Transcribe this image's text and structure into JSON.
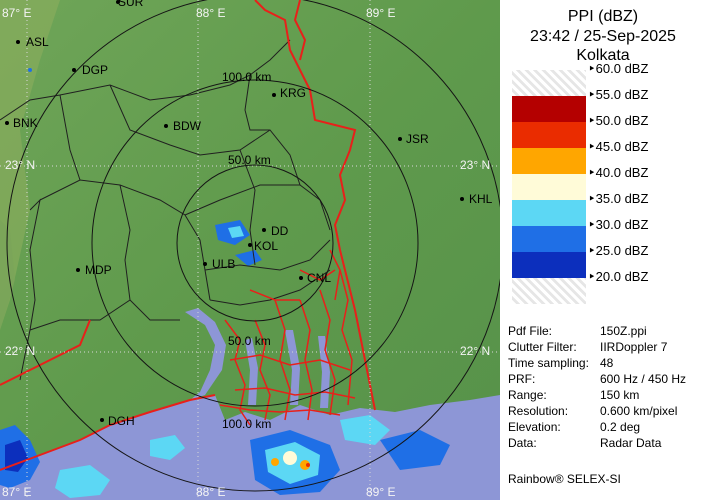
{
  "map": {
    "coord_labels": {
      "lon_87_top": "87° E",
      "lon_88_top": "88° E",
      "lon_89_top": "89° E",
      "lat_23_left": "23° N",
      "lat_23_right": "23° N",
      "lat_22_left": "22° N",
      "lat_22_right": "22° N",
      "lon_87_bottom": "87° E",
      "lon_88_bottom": "88° E",
      "lon_89_bottom": "89° E"
    },
    "range_labels": {
      "r100_top": "100.0 km",
      "r50_top": "50.0 km",
      "r50_bottom": "50.0 km",
      "r100_bottom": "100.0 km"
    },
    "places": {
      "sur": "SUR",
      "asl": "ASL",
      "dgp": "DGP",
      "krg": "KRG",
      "bdw": "BDW",
      "bnk": "BNK",
      "jsr": "JSR",
      "khl": "KHL",
      "dd": "DD",
      "kol": "KOL",
      "ulb": "ULB",
      "mdp": "MDP",
      "cnl": "CNL",
      "dgh": "DGH"
    },
    "colors": {
      "terrain": "#5f9a4c",
      "terrain_dark": "#4d8840",
      "sea": "#8d96d6",
      "border_red": "#e8201a",
      "district_line": "#202020",
      "range_ring": "#151515"
    }
  },
  "panel": {
    "title_line1": "PPI (dBZ)",
    "title_line2": "23:42 / 25-Sep-2025",
    "title_line3": "Kolkata",
    "scale": [
      {
        "label": "60.0 dBZ",
        "color": "#f2f2f2",
        "pattern": true
      },
      {
        "label": "55.0 dBZ",
        "color": "#b40000"
      },
      {
        "label": "50.0 dBZ",
        "color": "#ea2c00"
      },
      {
        "label": "45.0 dBZ",
        "color": "#ffa600"
      },
      {
        "label": "40.0 dBZ",
        "color": "#fffbd8"
      },
      {
        "label": "35.0 dBZ",
        "color": "#5cd7f4"
      },
      {
        "label": "30.0 dBZ",
        "color": "#1f6fe6"
      },
      {
        "label": "25.0 dBZ",
        "color": "#0c2fbd"
      },
      {
        "label": "20.0 dBZ",
        "color": "#f2f2f2",
        "pattern": true
      }
    ],
    "info": [
      {
        "key": "Pdf File:",
        "value": "150Z.ppi"
      },
      {
        "key": "Clutter Filter:",
        "value": "IIRDoppler 7"
      },
      {
        "key": "Time sampling:",
        "value": "48"
      },
      {
        "key": "PRF:",
        "value": "600 Hz / 450 Hz"
      },
      {
        "key": "Range:",
        "value": "150 km"
      },
      {
        "key": "Resolution:",
        "value": "0.600 km/pixel"
      },
      {
        "key": "Elevation:",
        "value": "0.2 deg"
      },
      {
        "key": "Data:",
        "value": "Radar Data"
      }
    ],
    "footer": "Rainbow® SELEX-SI"
  }
}
